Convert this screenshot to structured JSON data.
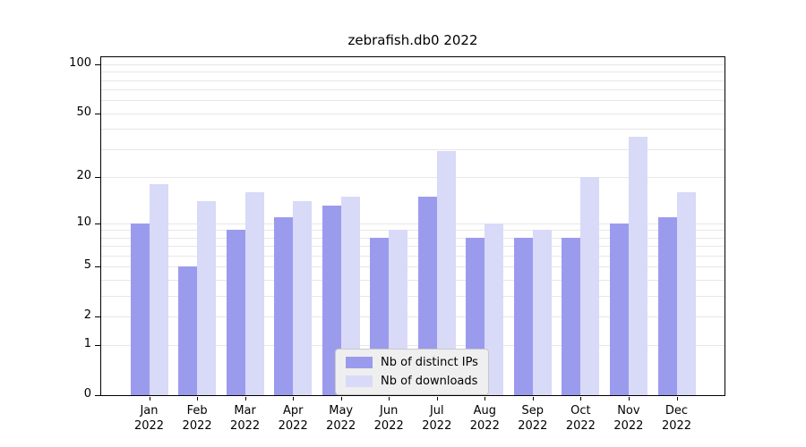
{
  "chart_data": {
    "type": "bar",
    "title": "zebrafish.db0 2022",
    "year_label": "2022",
    "categories": [
      "Jan",
      "Feb",
      "Mar",
      "Apr",
      "May",
      "Jun",
      "Jul",
      "Aug",
      "Sep",
      "Oct",
      "Nov",
      "Dec"
    ],
    "series": [
      {
        "name": "Nb of distinct IPs",
        "color": "#9b9bee",
        "values": [
          10,
          5,
          9,
          11,
          13,
          8,
          15,
          8,
          8,
          8,
          10,
          11
        ]
      },
      {
        "name": "Nb of downloads",
        "color": "#d9d9f8",
        "values": [
          18,
          14,
          16,
          14,
          15,
          9,
          29,
          10,
          9,
          20,
          36,
          16
        ]
      }
    ],
    "yscale": "log1p",
    "yticks": [
      0,
      1,
      2,
      5,
      10,
      20,
      50,
      100
    ],
    "minor_gridlines": [
      3,
      4,
      6,
      7,
      8,
      9,
      30,
      40,
      60,
      70,
      80,
      90
    ],
    "ylim": [
      0,
      111
    ],
    "grid": "horizontal",
    "legend_position": "lower center",
    "colors": {
      "frame": "#000000",
      "gridline": "#e7e7e7",
      "legend_bg": "#efefef",
      "legend_border": "#c9c9c9",
      "text": "#000000"
    }
  }
}
